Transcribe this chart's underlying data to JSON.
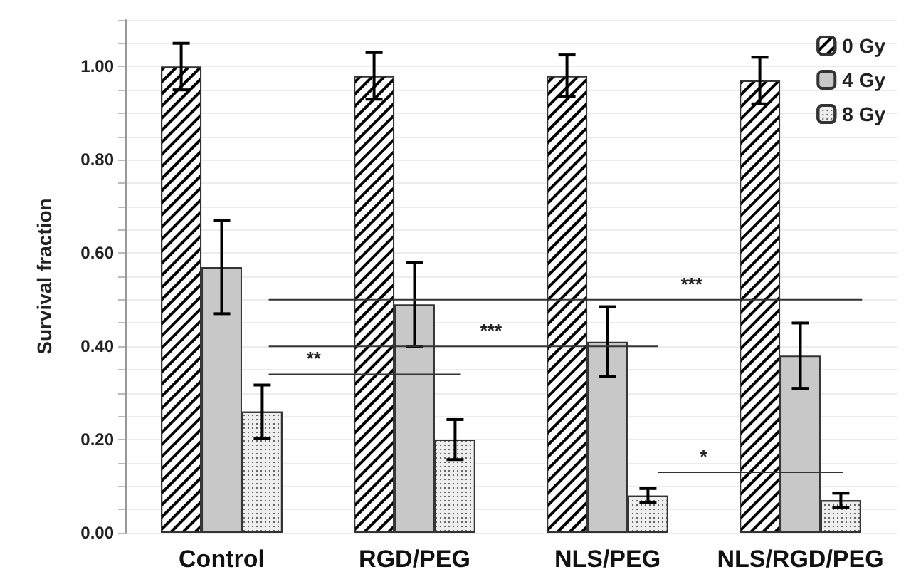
{
  "chart_data": {
    "type": "bar",
    "ylabel": "Survival fraction",
    "categories": [
      "Control",
      "RGD/PEG",
      "NLS/PEG",
      "NLS/RGD/PEG"
    ],
    "series": [
      {
        "name": "0 Gy",
        "color": "#ffffff",
        "values": [
          1.0,
          0.98,
          0.98,
          0.97
        ],
        "errors": [
          0.05,
          0.05,
          0.045,
          0.05
        ]
      },
      {
        "name": "4 Gy",
        "color": "#c8c8c8",
        "values": [
          0.57,
          0.49,
          0.41,
          0.38
        ],
        "errors": [
          0.1,
          0.09,
          0.075,
          0.07
        ]
      },
      {
        "name": "8 Gy",
        "color": "#eeeeee",
        "values": [
          0.26,
          0.2,
          0.08,
          0.07
        ],
        "errors": [
          0.057,
          0.043,
          0.015,
          0.015
        ]
      }
    ],
    "ylim": [
      0,
      1.1
    ],
    "yticks": [
      {
        "value": 0,
        "label": "0.00"
      },
      {
        "value": 0.05,
        "label": null
      },
      {
        "value": 0.1,
        "label": null
      },
      {
        "value": 0.15,
        "label": null
      },
      {
        "value": 0.2,
        "label": "0.20"
      },
      {
        "value": 0.25,
        "label": null
      },
      {
        "value": 0.3,
        "label": null
      },
      {
        "value": 0.35,
        "label": null
      },
      {
        "value": 0.4,
        "label": "0.40"
      },
      {
        "value": 0.45,
        "label": null
      },
      {
        "value": 0.5,
        "label": null
      },
      {
        "value": 0.55,
        "label": null
      },
      {
        "value": 0.6,
        "label": "0.60"
      },
      {
        "value": 0.65,
        "label": null
      },
      {
        "value": 0.7,
        "label": null
      },
      {
        "value": 0.75,
        "label": null
      },
      {
        "value": 0.8,
        "label": "0.80"
      },
      {
        "value": 0.85,
        "label": null
      },
      {
        "value": 0.9,
        "label": null
      },
      {
        "value": 0.95,
        "label": null
      },
      {
        "value": 1.0,
        "label": "1.00"
      },
      {
        "value": 1.05,
        "label": null
      },
      {
        "value": 1.1,
        "label": null
      }
    ],
    "grid": "y",
    "legend": "top right",
    "ref_lines": [
      {
        "axis": "y",
        "value": 0.34,
        "label": "**",
        "color": "#333333"
      },
      {
        "axis": "y",
        "value": 0.4,
        "label": "***",
        "color": "#333333"
      },
      {
        "axis": "y",
        "value": 0.5,
        "label": "***",
        "color": "#333333"
      },
      {
        "axis": "y",
        "value": 0.13,
        "label": "*",
        "color": "#333333"
      }
    ]
  }
}
